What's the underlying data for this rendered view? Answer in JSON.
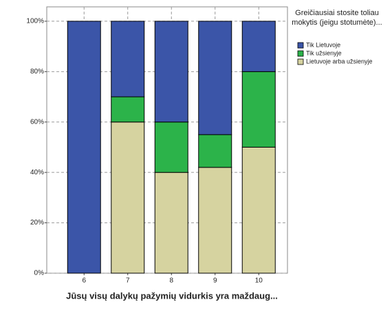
{
  "chart_data": {
    "type": "stacked_bar",
    "x_label": "Jūsų visų dalykų pažymių vidurkis yra maždaug...",
    "legend_title": "Greičiausiai stosite toliau mokytis (jeigu stotumėte)...",
    "categories": [
      "6",
      "7",
      "8",
      "9",
      "10"
    ],
    "series": [
      {
        "name": "Tik Lietuvoje",
        "color": "#3b55a8",
        "values": [
          100,
          30,
          40,
          45,
          20
        ]
      },
      {
        "name": "Tik užsienyje",
        "color": "#2cb34a",
        "values": [
          0,
          10,
          20,
          13,
          30
        ]
      },
      {
        "name": "Lietuvoje arba užsienyje",
        "color": "#d6d3a0",
        "values": [
          0,
          60,
          40,
          42,
          50
        ]
      }
    ],
    "ylim": [
      0,
      105.7
    ],
    "yticks": [
      {
        "value": 0,
        "label": "0%"
      },
      {
        "value": 20,
        "label": "20%"
      },
      {
        "value": 40,
        "label": "40%"
      },
      {
        "value": 60,
        "label": "60%"
      },
      {
        "value": 80,
        "label": "80%"
      },
      {
        "value": 100,
        "label": "100%"
      }
    ],
    "grid": true
  }
}
